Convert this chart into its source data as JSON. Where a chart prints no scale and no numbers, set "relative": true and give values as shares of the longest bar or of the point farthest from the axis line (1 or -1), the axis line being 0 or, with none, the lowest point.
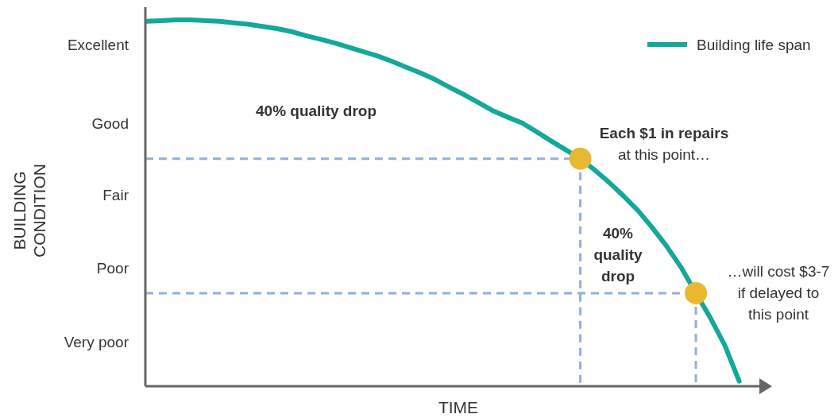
{
  "chart_data": {
    "type": "line",
    "xlabel": "TIME",
    "relative": true,
    "categories": [
      null,
      null,
      null,
      null,
      null,
      null,
      null,
      null,
      null,
      null,
      null,
      null,
      null,
      null,
      null,
      null,
      null,
      null,
      null,
      null,
      null,
      null,
      null,
      null,
      null,
      null,
      null,
      null,
      null,
      null,
      null,
      null,
      null,
      null,
      null,
      null,
      null,
      null,
      null,
      null,
      null,
      null,
      null,
      null
    ],
    "legend": "top right",
    "marker": "none",
    "line_style": "solid",
    "series": [
      {
        "name": "Building life span",
        "color": "#14a89a",
        "values": [
          0.996,
          0.998,
          1,
          1,
          0.998,
          0.996,
          0.992,
          0.988,
          0.982,
          0.976,
          0.968,
          0.957,
          0.947,
          0.937,
          0.925,
          0.913,
          0.901,
          0.886,
          0.87,
          0.854,
          0.836,
          0.815,
          0.795,
          0.773,
          0.751,
          0.734,
          0.718,
          0.694,
          0.669,
          0.645,
          0.621,
          0.59,
          0.556,
          0.519,
          0.479,
          0.432,
          0.381,
          0.323,
          0.254,
          0.187,
          0.112,
          0.014,
          null,
          null
        ]
      }
    ],
    "ref_lines": [
      {
        "axis": "y",
        "value": 0.621,
        "color": "#8fb0dc",
        "line_style": "dashed"
      },
      {
        "axis": "y",
        "value": 0.254,
        "color": "#8fb0dc",
        "line_style": "dashed"
      }
    ],
    "annotations": [
      "40% quality drop",
      "Each $1 in repairs\nat this point…",
      "40%\nquality\ndrop",
      "…will cost $3-7\nif delayed to\nthis point",
      "Excellent",
      "Good",
      "Fair",
      "Poor",
      "Very poor",
      "BUILDING CONDITION"
    ]
  }
}
